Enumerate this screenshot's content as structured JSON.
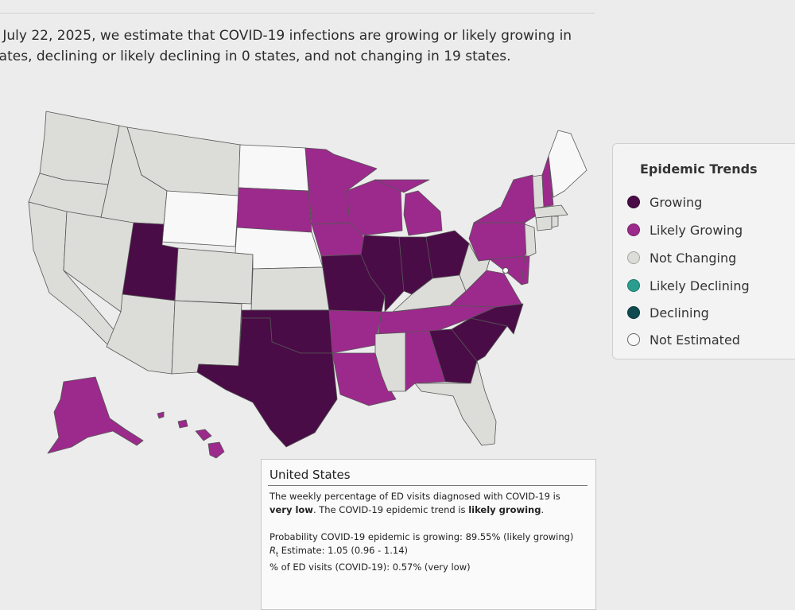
{
  "summary": {
    "line1": "f July 22, 2025, we estimate that COVID-19 infections are growing or likely growing in",
    "line2": "tates, declining or likely declining in 0 states, and not changing in 19 states."
  },
  "colors": {
    "growing": "#4a0c46",
    "likely_growing": "#9c2a8c",
    "not_changing": "#dcdcd9",
    "likely_declining": "#2a9d8f",
    "declining": "#0e4a4f",
    "not_estimated": "#f8f8f8",
    "border": "#555555"
  },
  "legend": {
    "title": "Epidemic Trends",
    "items": [
      {
        "key": "growing",
        "label": "Growing"
      },
      {
        "key": "likely_growing",
        "label": "Likely Growing"
      },
      {
        "key": "not_changing",
        "label": "Not Changing"
      },
      {
        "key": "likely_declining",
        "label": "Likely Declining"
      },
      {
        "key": "declining",
        "label": "Declining"
      },
      {
        "key": "not_estimated",
        "label": "Not Estimated"
      }
    ]
  },
  "map": {
    "states": [
      {
        "id": "WA",
        "trend": "not_changing"
      },
      {
        "id": "OR",
        "trend": "not_changing"
      },
      {
        "id": "CA",
        "trend": "not_changing"
      },
      {
        "id": "ID",
        "trend": "not_changing"
      },
      {
        "id": "NV",
        "trend": "not_changing"
      },
      {
        "id": "MT",
        "trend": "not_changing"
      },
      {
        "id": "WY",
        "trend": "not_estimated"
      },
      {
        "id": "UT",
        "trend": "growing"
      },
      {
        "id": "AZ",
        "trend": "not_changing"
      },
      {
        "id": "CO",
        "trend": "not_changing"
      },
      {
        "id": "NM",
        "trend": "not_changing"
      },
      {
        "id": "ND",
        "trend": "not_estimated"
      },
      {
        "id": "SD",
        "trend": "likely_growing"
      },
      {
        "id": "NE",
        "trend": "not_estimated"
      },
      {
        "id": "KS",
        "trend": "not_changing"
      },
      {
        "id": "OK",
        "trend": "growing"
      },
      {
        "id": "TX",
        "trend": "growing"
      },
      {
        "id": "MN",
        "trend": "likely_growing"
      },
      {
        "id": "IA",
        "trend": "likely_growing"
      },
      {
        "id": "MO",
        "trend": "growing"
      },
      {
        "id": "AR",
        "trend": "likely_growing"
      },
      {
        "id": "LA",
        "trend": "likely_growing"
      },
      {
        "id": "WI",
        "trend": "likely_growing"
      },
      {
        "id": "IL",
        "trend": "growing"
      },
      {
        "id": "MI",
        "trend": "likely_growing"
      },
      {
        "id": "IN",
        "trend": "growing"
      },
      {
        "id": "OH",
        "trend": "growing"
      },
      {
        "id": "KY",
        "trend": "not_changing"
      },
      {
        "id": "TN",
        "trend": "likely_growing"
      },
      {
        "id": "MS",
        "trend": "not_changing"
      },
      {
        "id": "AL",
        "trend": "likely_growing"
      },
      {
        "id": "GA",
        "trend": "growing"
      },
      {
        "id": "FL",
        "trend": "not_changing"
      },
      {
        "id": "SC",
        "trend": "growing"
      },
      {
        "id": "NC",
        "trend": "growing"
      },
      {
        "id": "VA",
        "trend": "likely_growing"
      },
      {
        "id": "WV",
        "trend": "not_changing"
      },
      {
        "id": "PA",
        "trend": "likely_growing"
      },
      {
        "id": "NY",
        "trend": "likely_growing"
      },
      {
        "id": "NJ",
        "trend": "not_changing"
      },
      {
        "id": "MD",
        "trend": "likely_growing"
      },
      {
        "id": "DE",
        "trend": "likely_growing"
      },
      {
        "id": "VT",
        "trend": "not_changing"
      },
      {
        "id": "NH",
        "trend": "likely_growing"
      },
      {
        "id": "ME",
        "trend": "not_estimated"
      },
      {
        "id": "MA",
        "trend": "not_changing"
      },
      {
        "id": "CT",
        "trend": "not_changing"
      },
      {
        "id": "RI",
        "trend": "not_changing"
      },
      {
        "id": "AK",
        "trend": "likely_growing"
      },
      {
        "id": "HI",
        "trend": "likely_growing"
      }
    ]
  },
  "info": {
    "title": "United States",
    "line1_pre": "The weekly percentage of ED visits diagnosed with COVID-19 is",
    "level": "very low",
    "line2_mid": ". The COVID-19 epidemic trend is ",
    "trend": "likely growing",
    "line2_end": ".",
    "probability": "Probability COVID-19 epidemic is growing: 89.55% (likely growing)",
    "rt_symbol": "R",
    "rt_sub": "t",
    "rt_text": " Estimate: 1.05 (0.96 - 1.14)",
    "ed_visits": "% of ED visits (COVID-19): 0.57% (very low)"
  }
}
